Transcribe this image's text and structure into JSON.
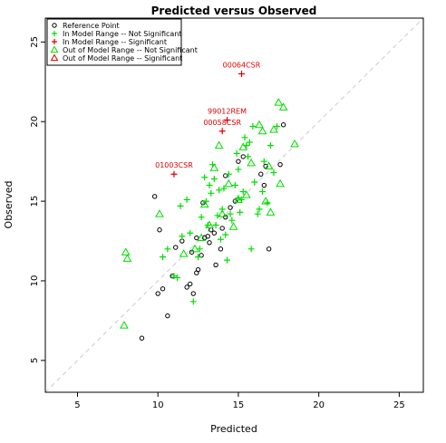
{
  "chart_data": {
    "type": "scatter",
    "title": "Predicted versus Observed",
    "xlabel": "Predicted",
    "ylabel": "Observed",
    "xlim": [
      3,
      26.5
    ],
    "ylim": [
      3,
      26.5
    ],
    "xticks": [
      5,
      10,
      15,
      20,
      25
    ],
    "yticks": [
      5,
      10,
      15,
      20,
      25
    ],
    "grid": false,
    "legend_position": "top-left",
    "reference_line": {
      "slope": 1,
      "intercept": 0,
      "style": "dashed",
      "color": "#cccccc"
    },
    "colors": {
      "reference": "#000000",
      "in_range": "#00dd00",
      "out_range": "#00dd00",
      "significant": "#dd0000"
    },
    "legend": [
      {
        "label": "Reference Point",
        "marker": "circle",
        "color": "#000000"
      },
      {
        "label": "In Model Range -- Not Significant",
        "marker": "plus",
        "color": "#00dd00"
      },
      {
        "label": "In Model Range -- Significant",
        "marker": "plus",
        "color": "#dd0000"
      },
      {
        "label": "Out of Model Range -- Not Significant",
        "marker": "triangle",
        "color": "#00dd00"
      },
      {
        "label": "Out of Model Range -- Significant",
        "marker": "triangle",
        "color": "#dd0000"
      }
    ],
    "series": [
      {
        "name": "Reference Point",
        "marker": "circle",
        "color": "#000000",
        "points": [
          [
            9.0,
            6.4
          ],
          [
            10.0,
            9.2
          ],
          [
            10.3,
            9.5
          ],
          [
            10.6,
            7.8
          ],
          [
            10.9,
            10.3
          ],
          [
            11.5,
            12.5
          ],
          [
            11.8,
            9.6
          ],
          [
            12.0,
            9.8
          ],
          [
            12.2,
            9.2
          ],
          [
            12.4,
            10.5
          ],
          [
            12.5,
            10.7
          ],
          [
            12.1,
            11.8
          ],
          [
            12.7,
            11.6
          ],
          [
            12.9,
            12.7
          ],
          [
            13.1,
            12.8
          ],
          [
            13.3,
            13.2
          ],
          [
            13.6,
            11.0
          ],
          [
            13.9,
            12.0
          ],
          [
            14.0,
            13.3
          ],
          [
            14.2,
            14.0
          ],
          [
            14.5,
            14.6
          ],
          [
            14.8,
            15.0
          ],
          [
            15.0,
            17.5
          ],
          [
            15.3,
            17.8
          ],
          [
            16.4,
            16.7
          ],
          [
            16.6,
            16.0
          ],
          [
            16.7,
            17.2
          ],
          [
            16.9,
            12.0
          ],
          [
            17.6,
            17.3
          ],
          [
            17.8,
            19.8
          ],
          [
            14.2,
            16.6
          ],
          [
            12.4,
            12.7
          ],
          [
            9.8,
            15.3
          ],
          [
            10.1,
            13.2
          ],
          [
            11.1,
            12.1
          ],
          [
            12.8,
            14.9
          ],
          [
            13.5,
            13.0
          ],
          [
            13.2,
            12.4
          ]
        ]
      },
      {
        "name": "In Model Range -- Not Significant",
        "marker": "plus",
        "color": "#00dd00",
        "points": [
          [
            10.3,
            11.5
          ],
          [
            10.6,
            12.0
          ],
          [
            11.0,
            10.3
          ],
          [
            11.2,
            10.2
          ],
          [
            11.5,
            12.8
          ],
          [
            11.8,
            15.1
          ],
          [
            12.0,
            13.0
          ],
          [
            12.2,
            8.7
          ],
          [
            12.5,
            11.5
          ],
          [
            12.6,
            12.0
          ],
          [
            12.7,
            14.0
          ],
          [
            12.9,
            16.5
          ],
          [
            13.0,
            15.0
          ],
          [
            13.1,
            13.5
          ],
          [
            13.2,
            16.0
          ],
          [
            13.3,
            15.5
          ],
          [
            13.4,
            17.3
          ],
          [
            13.5,
            16.4
          ],
          [
            13.6,
            13.5
          ],
          [
            13.8,
            15.7
          ],
          [
            13.9,
            12.6
          ],
          [
            14.0,
            14.5
          ],
          [
            14.1,
            15.8
          ],
          [
            14.2,
            12.9
          ],
          [
            14.4,
            16.7
          ],
          [
            14.5,
            14.2
          ],
          [
            14.6,
            13.8
          ],
          [
            14.8,
            16.0
          ],
          [
            14.9,
            18.0
          ],
          [
            15.0,
            17.0
          ],
          [
            15.1,
            14.3
          ],
          [
            15.2,
            15.1
          ],
          [
            15.3,
            15.6
          ],
          [
            15.4,
            19.0
          ],
          [
            15.5,
            18.5
          ],
          [
            15.6,
            17.8
          ],
          [
            15.7,
            18.7
          ],
          [
            15.8,
            12.0
          ],
          [
            15.9,
            19.7
          ],
          [
            16.0,
            16.2
          ],
          [
            16.2,
            14.2
          ],
          [
            16.3,
            14.5
          ],
          [
            16.5,
            15.6
          ],
          [
            16.6,
            17.5
          ],
          [
            16.8,
            14.9
          ],
          [
            17.0,
            18.5
          ],
          [
            17.2,
            16.8
          ],
          [
            17.4,
            19.7
          ],
          [
            11.4,
            14.7
          ],
          [
            13.7,
            14.1
          ],
          [
            14.3,
            11.3
          ],
          [
            15.0,
            15.2
          ]
        ]
      },
      {
        "name": "In Model Range -- Significant",
        "marker": "plus",
        "color": "#dd0000",
        "points": [
          [
            11.0,
            16.7,
            "01003CSR"
          ],
          [
            14.0,
            19.4,
            "00058CSR"
          ],
          [
            14.3,
            20.1,
            "99012REM"
          ],
          [
            15.2,
            23.0,
            "00064CSR"
          ]
        ]
      },
      {
        "name": "Out of Model Range -- Not Significant",
        "marker": "triangle",
        "color": "#00dd00",
        "points": [
          [
            7.9,
            7.2
          ],
          [
            8.0,
            11.8
          ],
          [
            8.1,
            11.4
          ],
          [
            10.1,
            14.2
          ],
          [
            11.6,
            11.7
          ],
          [
            12.3,
            12.0
          ],
          [
            12.7,
            12.7
          ],
          [
            13.2,
            13.5
          ],
          [
            13.5,
            17.1
          ],
          [
            13.8,
            18.5
          ],
          [
            14.0,
            14.2
          ],
          [
            14.4,
            16.1
          ],
          [
            14.7,
            13.4
          ],
          [
            15.0,
            15.1
          ],
          [
            15.3,
            18.4
          ],
          [
            15.5,
            15.4
          ],
          [
            15.8,
            17.4
          ],
          [
            16.3,
            19.8
          ],
          [
            16.5,
            19.4
          ],
          [
            16.7,
            15.0
          ],
          [
            17.0,
            14.3
          ],
          [
            17.2,
            19.5
          ],
          [
            17.5,
            21.2
          ],
          [
            17.8,
            20.9
          ],
          [
            18.5,
            18.6
          ],
          [
            17.6,
            16.1
          ],
          [
            16.9,
            17.2
          ],
          [
            12.9,
            14.8
          ]
        ]
      },
      {
        "name": "Out of Model Range -- Significant",
        "marker": "triangle",
        "color": "#dd0000",
        "points": []
      }
    ]
  }
}
